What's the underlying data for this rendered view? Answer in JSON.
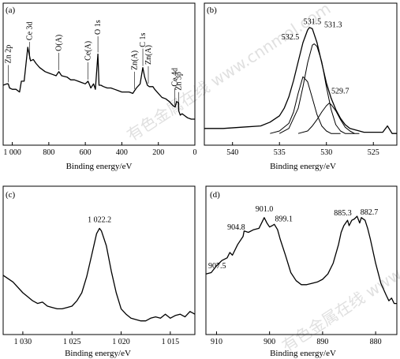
{
  "watermark": {
    "text": "有色金属在线 www.cnnmol.com"
  },
  "chart_data": [
    {
      "type": "line",
      "panel_label": "(a)",
      "xlabel": "Binding energy/eV",
      "ylabel": "",
      "xlim": [
        1050,
        0
      ],
      "x_reversed": true,
      "xticks": [
        1000,
        800,
        600,
        400,
        200,
        0
      ],
      "xtick_labels": [
        "1 000",
        "800",
        "600",
        "400",
        "200",
        "0"
      ],
      "y_axis": "relative intensity (arbitrary units, no scale shown)",
      "ylim": [
        0,
        100
      ],
      "grid": false,
      "series": [
        {
          "x": [
            1050,
            1030,
            1022,
            1015,
            1000,
            980,
            960,
            950,
            935,
            915,
            900,
            885,
            870,
            850,
            820,
            800,
            780,
            760,
            745,
            730,
            700,
            680,
            660,
            640,
            620,
            600,
            585,
            570,
            555,
            545,
            531,
            525,
            515,
            500,
            480,
            460,
            440,
            420,
            400,
            380,
            360,
            340,
            330,
            320,
            300,
            285,
            275,
            260,
            250,
            230,
            220,
            200,
            180,
            160,
            140,
            120,
            108,
            100,
            90,
            88,
            80,
            70,
            60,
            40,
            20,
            0
          ],
          "y": [
            43,
            44,
            44,
            41,
            40,
            40,
            38,
            46,
            46,
            71,
            61,
            62,
            59,
            56,
            53,
            52,
            51,
            50,
            53,
            50,
            49,
            47,
            47,
            46,
            45,
            44,
            46,
            41,
            44,
            40,
            66,
            43,
            43,
            42,
            41,
            41,
            40,
            39,
            38,
            38,
            38,
            37,
            39,
            41,
            44,
            56,
            49,
            43,
            42,
            42,
            40,
            37,
            34,
            33,
            31,
            28,
            27,
            31,
            30,
            24,
            21,
            22,
            21,
            19,
            18,
            18
          ]
        }
      ],
      "annotations": [
        {
          "text": "Zn 2p",
          "x": 1022
        },
        {
          "text": "Ce 3d",
          "x": 905
        },
        {
          "text": "O(A)",
          "x": 745
        },
        {
          "text": "Ce(A)",
          "x": 585
        },
        {
          "text": "O 1s",
          "x": 531
        },
        {
          "text": "Zn(A)",
          "x": 330
        },
        {
          "text": "C 1s",
          "x": 285
        },
        {
          "text": "Zn(A)",
          "x": 255
        },
        {
          "text": "Ce 4d",
          "x": 110
        },
        {
          "text": "Zn 3p",
          "x": 88
        }
      ]
    },
    {
      "type": "line",
      "panel_label": "(b)",
      "xlabel": "Binding energy/eV",
      "ylabel": "",
      "xlim": [
        543,
        522.5
      ],
      "x_reversed": true,
      "xticks": [
        540,
        535,
        530,
        525
      ],
      "xtick_labels": [
        "540",
        "535",
        "530",
        "525"
      ],
      "y_axis": "relative intensity (arbitrary units, no scale shown)",
      "ylim": [
        0,
        100
      ],
      "grid": false,
      "series": [
        {
          "x": [
            543,
            541,
            539,
            537,
            536,
            535,
            534.5,
            534,
            533.5,
            533,
            532.5,
            532,
            531.8,
            531.5,
            531,
            530.5,
            530,
            529.5,
            529,
            528.5,
            528,
            527.5,
            527,
            526.5,
            526,
            525.5,
            525,
            524.5,
            524,
            523.5,
            523,
            522.5
          ],
          "y": [
            12,
            12,
            13,
            14,
            17,
            22,
            28,
            37,
            50,
            65,
            80,
            90,
            92,
            91,
            80,
            64,
            48,
            36,
            27,
            20,
            15,
            12,
            11,
            10,
            9,
            9,
            9,
            9,
            9,
            14,
            8,
            8
          ]
        },
        {
          "x": [
            536,
            535,
            534,
            533.5,
            533,
            532.5,
            532,
            531.5,
            531,
            530.5,
            530,
            529.5,
            529,
            528.5
          ],
          "y": [
            8,
            10,
            16,
            25,
            40,
            53,
            49,
            36,
            23,
            14,
            10,
            8,
            8,
            8
          ]
        },
        {
          "x": [
            535,
            534,
            533,
            532.5,
            532,
            531.5,
            531.3,
            531,
            530.5,
            530,
            529.5,
            529,
            528.5,
            528,
            527
          ],
          "y": [
            8,
            12,
            28,
            45,
            64,
            78,
            79,
            77,
            65,
            45,
            27,
            15,
            10,
            8,
            8
          ]
        },
        {
          "x": [
            533,
            532,
            531.5,
            531,
            530.5,
            530,
            529.7,
            529.5,
            529,
            528.5,
            528,
            527.5,
            527,
            526.5
          ],
          "y": [
            8,
            10,
            14,
            19,
            25,
            30,
            32,
            31,
            26,
            19,
            13,
            10,
            8,
            8
          ]
        }
      ],
      "annotations": [
        {
          "text": "531.5",
          "x": 531.5
        },
        {
          "text": "531.3",
          "x": 531.3
        },
        {
          "text": "532.5",
          "x": 532.5
        },
        {
          "text": "529.7",
          "x": 529.7
        }
      ]
    },
    {
      "type": "line",
      "panel_label": "(c)",
      "xlabel": "Binding energy/eV",
      "ylabel": "",
      "xlim": [
        1032,
        1012.5
      ],
      "x_reversed": true,
      "xticks": [
        1030,
        1025,
        1020,
        1015
      ],
      "xtick_labels": [
        "1 030",
        "1 025",
        "1 020",
        "1 015"
      ],
      "y_axis": "relative intensity (arbitrary units, no scale shown)",
      "ylim": [
        0,
        100
      ],
      "grid": false,
      "series": [
        {
          "x": [
            1032,
            1031,
            1030,
            1029.5,
            1029,
            1028.5,
            1028,
            1027.5,
            1027,
            1026.5,
            1026,
            1025.5,
            1025,
            1024.5,
            1024,
            1023.5,
            1023,
            1022.5,
            1022.2,
            1022,
            1021.5,
            1021,
            1020.5,
            1020,
            1019.5,
            1019,
            1018.5,
            1018,
            1017.5,
            1017,
            1016.5,
            1016,
            1015.5,
            1015,
            1014.5,
            1014,
            1013.5,
            1013,
            1012.5
          ],
          "y": [
            43,
            38,
            30,
            27,
            24,
            22,
            23,
            20,
            19,
            18,
            18,
            19,
            20,
            24,
            30,
            42,
            58,
            74,
            78,
            76,
            65,
            46,
            30,
            18,
            14,
            11,
            10,
            9,
            9,
            11,
            12,
            11,
            14,
            11,
            13,
            14,
            12,
            16,
            14
          ]
        }
      ],
      "annotations": [
        {
          "text": "1 022.2",
          "x": 1022.2
        }
      ]
    },
    {
      "type": "line",
      "panel_label": "(d)",
      "xlabel": "Binding energy/eV",
      "ylabel": "",
      "xlim": [
        912,
        876
      ],
      "x_reversed": true,
      "xticks": [
        910,
        900,
        890,
        880
      ],
      "xtick_labels": [
        "910",
        "900",
        "890",
        "880"
      ],
      "y_axis": "relative intensity (arbitrary units, no scale shown)",
      "ylim": [
        0,
        100
      ],
      "grid": false,
      "series": [
        {
          "x": [
            912,
            911,
            910,
            909,
            908,
            907.5,
            907,
            906,
            905,
            904.8,
            904,
            903,
            902,
            901.5,
            901,
            900.5,
            900,
            899.5,
            899.1,
            898.5,
            898,
            897,
            896,
            895,
            894,
            893,
            892,
            891,
            890,
            889,
            888,
            887,
            886.5,
            886,
            885.3,
            885,
            884.5,
            884,
            883.5,
            883,
            882.7,
            882,
            881.5,
            881,
            880,
            879,
            878,
            877.5,
            877,
            876.5,
            876
          ],
          "y": [
            44,
            45,
            50,
            54,
            56,
            60,
            58,
            66,
            72,
            76,
            75,
            77,
            78,
            82,
            86,
            82,
            79,
            80,
            81,
            77,
            70,
            58,
            45,
            39,
            36,
            36,
            37,
            38,
            40,
            44,
            52,
            66,
            75,
            80,
            84,
            80,
            84,
            85,
            87,
            82,
            86,
            84,
            78,
            70,
            52,
            37,
            28,
            24,
            26,
            22,
            22
          ]
        }
      ],
      "annotations": [
        {
          "text": "901.0",
          "x": 901.0
        },
        {
          "text": "904.8",
          "x": 904.8
        },
        {
          "text": "899.1",
          "x": 899.1
        },
        {
          "text": "907.5",
          "x": 907.5
        },
        {
          "text": "885.3",
          "x": 885.3
        },
        {
          "text": "882.7",
          "x": 882.7
        }
      ]
    }
  ]
}
